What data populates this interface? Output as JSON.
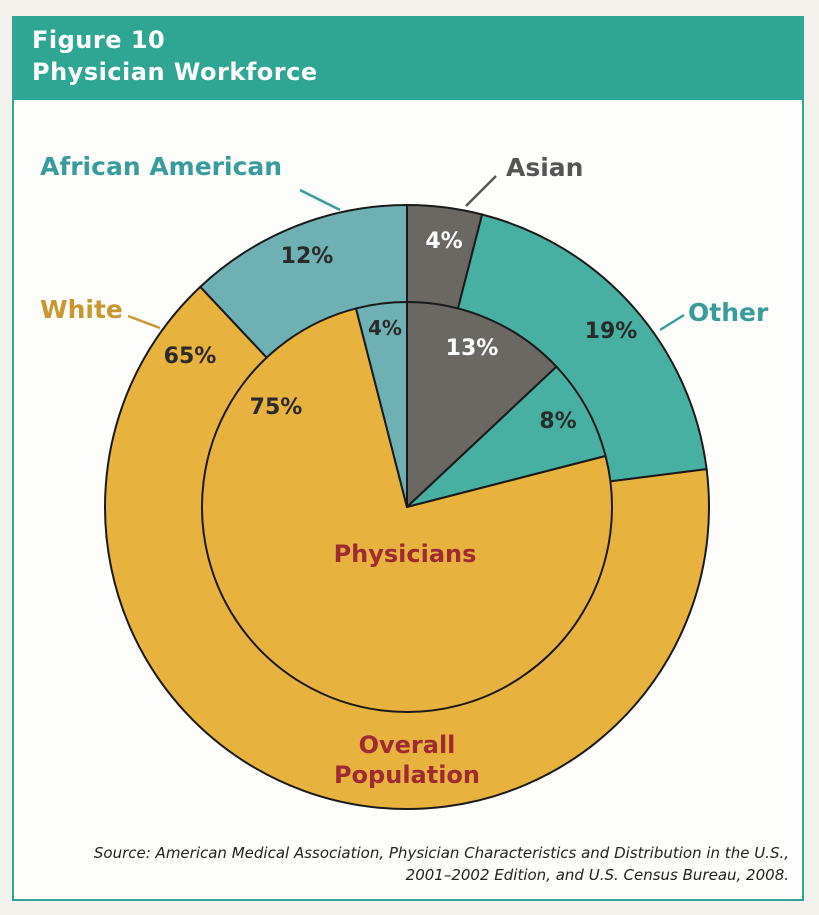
{
  "figure": {
    "number": "Figure 10",
    "title": "Physician Workforce"
  },
  "colors": {
    "header": "#2fa593",
    "white": "#e8b23f",
    "african_american": "#6fb0b4",
    "asian": "#6b6864",
    "other": "#48b0a3",
    "label_red": "#9e2a32",
    "label_teal": "#3a9b9c",
    "label_gold": "#c89730",
    "label_gray": "#555555"
  },
  "chart_data": {
    "type": "pie",
    "categories": [
      "White",
      "African American",
      "Asian",
      "Other"
    ],
    "series": [
      {
        "name": "Overall Population",
        "values": [
          65,
          12,
          4,
          19
        ]
      },
      {
        "name": "Physicians",
        "values": [
          75,
          4,
          13,
          8
        ]
      }
    ],
    "legend_labels": {
      "white": "White",
      "african_american": "African American",
      "asian": "Asian",
      "other": "Other"
    },
    "ring_labels": {
      "outer": "Overall Population",
      "inner": "Physicians"
    },
    "value_labels": {
      "outer": [
        "65%",
        "12%",
        "4%",
        "19%"
      ],
      "inner": [
        "75%",
        "4%",
        "13%",
        "8%"
      ]
    }
  },
  "source": {
    "line1": "Source: American Medical Association, Physician Characteristics and Distribution in the U.S.,",
    "line2": "2001–2002 Edition, and U.S. Census Bureau, 2008."
  }
}
